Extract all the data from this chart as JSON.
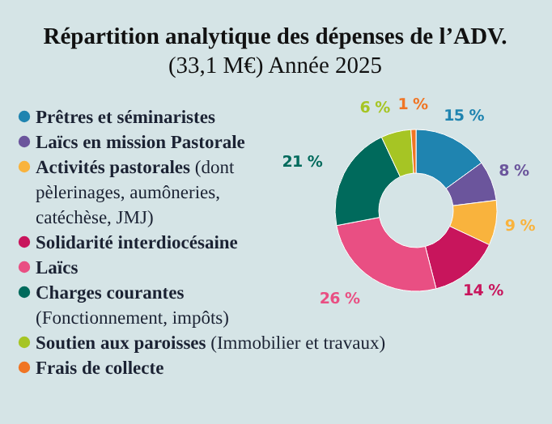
{
  "chart_data": {
    "type": "donut",
    "title": "Répartition analytique des dépenses de l’ADV.",
    "subtitle": "(33,1 M€) Année 2025",
    "categories": [
      "Prêtres et séminaristes",
      "Laïcs en mission Pastorale",
      "Activités pastorales (dont pèlerinages, aumôneries, catéchèse, JMJ)",
      "Solidarité interdiocésaine",
      "Laïcs",
      "Charges courantes (Fonctionnement, impôts)",
      "Soutien aux paroisses (Immobilier et travaux)",
      "Frais de collecte"
    ],
    "values": [
      15,
      8,
      9,
      14,
      26,
      21,
      6,
      1
    ],
    "value_labels": [
      "15 %",
      "8 %",
      "9 %",
      "14 %",
      "26 %",
      "21 %",
      "6 %",
      "1 %"
    ],
    "colors": [
      "#1f84b0",
      "#6b559c",
      "#f9b33d",
      "#c8155c",
      "#e94f83",
      "#006a5c",
      "#a6c524",
      "#f07524"
    ],
    "legend": "left"
  }
}
